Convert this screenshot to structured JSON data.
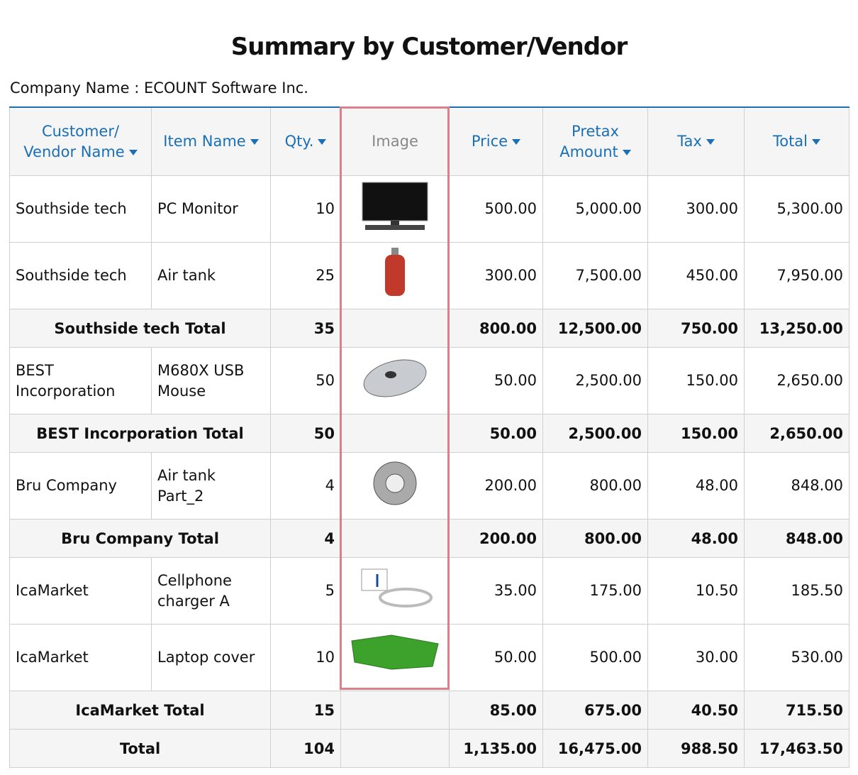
{
  "header": {
    "title": "Summary by Customer/Vendor",
    "company": "Company Name : ECOUNT Software Inc."
  },
  "table": {
    "columns": [
      "Customer/ Vendor Name",
      "Item Name",
      "Qty.",
      "Image",
      "Price",
      "Pretax Amount",
      "Tax",
      "Total"
    ],
    "groups": [
      {
        "items": [
          [
            "Southside tech",
            "PC Monitor",
            "10",
            "500.00",
            "5,000.00",
            "300.00",
            "5,300.00"
          ],
          [
            "Southside tech",
            "Air tank",
            "25",
            "300.00",
            "7,500.00",
            "450.00",
            "7,950.00"
          ]
        ],
        "subtotal": [
          "Southside tech Total",
          "35",
          "800.00",
          "12,500.00",
          "750.00",
          "13,250.00"
        ]
      },
      {
        "items": [
          [
            "BEST Incorporation",
            "M680X USB Mouse",
            "50",
            "50.00",
            "2,500.00",
            "150.00",
            "2,650.00"
          ]
        ],
        "subtotal": [
          "BEST Incorporation Total",
          "50",
          "50.00",
          "2,500.00",
          "150.00",
          "2,650.00"
        ]
      },
      {
        "items": [
          [
            "Bru Company",
            "Air tank Part_2",
            "4",
            "200.00",
            "800.00",
            "48.00",
            "848.00"
          ]
        ],
        "subtotal": [
          "Bru Company Total",
          "4",
          "200.00",
          "800.00",
          "48.00",
          "848.00"
        ]
      },
      {
        "items": [
          [
            "IcaMarket",
            "Cellphone charger A",
            "5",
            "35.00",
            "175.00",
            "10.50",
            "185.50"
          ],
          [
            "IcaMarket",
            "Laptop cover",
            "10",
            "50.00",
            "500.00",
            "30.00",
            "530.00"
          ]
        ],
        "subtotal": [
          "IcaMarket Total",
          "15",
          "85.00",
          "675.00",
          "40.50",
          "715.50"
        ]
      }
    ],
    "total": [
      "Total",
      "104",
      "1,135.00",
      "16,475.00",
      "988.50",
      "17,463.50"
    ]
  }
}
